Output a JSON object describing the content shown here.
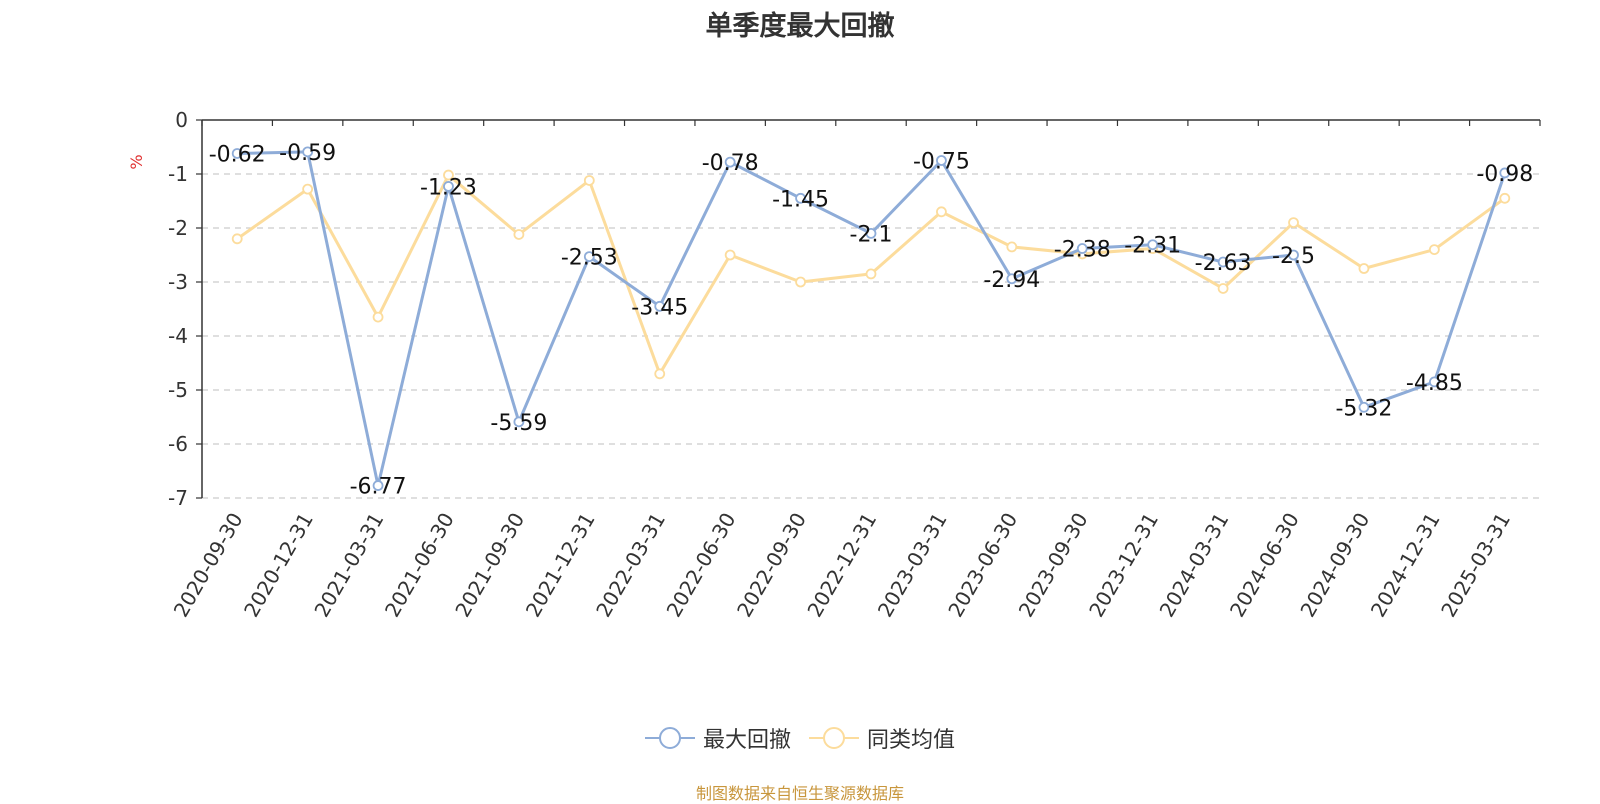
{
  "title": "单季度最大回撤",
  "source_note": "制图数据来自恒生聚源数据库",
  "colors": {
    "series1": "#8eacd8",
    "series2": "#fcdc9c",
    "axis": "#333333",
    "grid": "#cccccc",
    "unit": "#e03030"
  },
  "chart_data": {
    "type": "line",
    "ylabel": "%",
    "ylim": [
      -7,
      0
    ],
    "yticks": [
      0,
      -1,
      -2,
      -3,
      -4,
      -5,
      -6,
      -7
    ],
    "grid": true,
    "legend_position": "bottom-center",
    "categories": [
      "2020-09-30",
      "2020-12-31",
      "2021-03-31",
      "2021-06-30",
      "2021-09-30",
      "2021-12-31",
      "2022-03-31",
      "2022-06-30",
      "2022-09-30",
      "2022-12-31",
      "2023-03-31",
      "2023-06-30",
      "2023-09-30",
      "2023-12-31",
      "2024-03-31",
      "2024-06-30",
      "2024-09-30",
      "2024-12-31",
      "2025-03-31"
    ],
    "series": [
      {
        "name": "最大回撤",
        "values": [
          -0.62,
          -0.59,
          -6.77,
          -1.23,
          -5.59,
          -2.53,
          -3.45,
          -0.78,
          -1.45,
          -2.1,
          -0.75,
          -2.94,
          -2.38,
          -2.31,
          -2.63,
          -2.5,
          -5.32,
          -4.85,
          -0.98
        ],
        "labels": [
          "-0.62",
          "-0.59",
          "-6.77",
          "-1.23",
          "-5.59",
          "-2.53",
          "-3.45",
          "-0.78",
          "-1.45",
          "-2.1",
          "-0.75",
          "-2.94",
          "-2.38",
          "-2.31",
          "-2.63",
          "-2.5",
          "-5.32",
          "-4.85",
          "-0.98"
        ]
      },
      {
        "name": "同类均值",
        "values": [
          -2.2,
          -1.28,
          -3.65,
          -1.02,
          -2.12,
          -1.12,
          -4.7,
          -2.5,
          -3.0,
          -2.85,
          -1.7,
          -2.35,
          -2.48,
          -2.38,
          -3.12,
          -1.9,
          -2.75,
          -2.4,
          -1.45
        ]
      }
    ]
  }
}
